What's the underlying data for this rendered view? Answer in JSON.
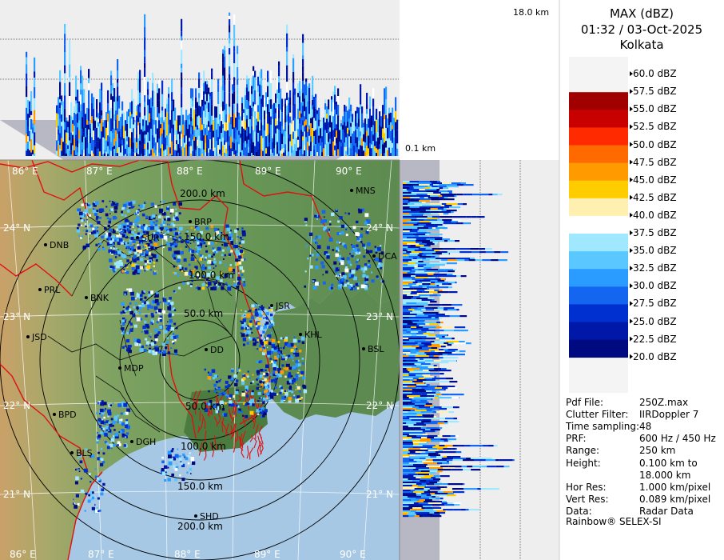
{
  "header": {
    "product": "MAX (dBZ)",
    "datetime": "01:32 / 03-Oct-2025",
    "station": "Kolkata"
  },
  "height_labels": {
    "top": "18.0 km",
    "bottom": "0.1 km"
  },
  "legend": [
    {
      "label": "60.0 dBZ",
      "color": "#ffffff"
    },
    {
      "label": "57.5 dBZ",
      "color": "#ffffff"
    },
    {
      "label": "55.0 dBZ",
      "color": "#a00000"
    },
    {
      "label": "52.5 dBZ",
      "color": "#c80000"
    },
    {
      "label": "50.0 dBZ",
      "color": "#ff2a00"
    },
    {
      "label": "47.5 dBZ",
      "color": "#ff6a00"
    },
    {
      "label": "45.0 dBZ",
      "color": "#ff9a00"
    },
    {
      "label": "42.5 dBZ",
      "color": "#ffcc00"
    },
    {
      "label": "40.0 dBZ",
      "color": "#fff0b0"
    },
    {
      "label": "37.5 dBZ",
      "color": "#ffffff"
    },
    {
      "label": "35.0 dBZ",
      "color": "#a0e8ff"
    },
    {
      "label": "32.5 dBZ",
      "color": "#5ac8ff"
    },
    {
      "label": "30.0 dBZ",
      "color": "#2a9cff"
    },
    {
      "label": "27.5 dBZ",
      "color": "#1466f0"
    },
    {
      "label": "25.0 dBZ",
      "color": "#0030d0"
    },
    {
      "label": "22.5 dBZ",
      "color": "#0018a8"
    },
    {
      "label": "20.0 dBZ",
      "color": "#000a80"
    }
  ],
  "info": [
    {
      "key": "Pdf File:",
      "value": "250Z.max"
    },
    {
      "key": "Clutter Filter:",
      "value": "IIRDoppler 7"
    },
    {
      "key": "Time sampling:",
      "value": "48"
    },
    {
      "key": "PRF:",
      "value": "600 Hz / 450 Hz"
    },
    {
      "key": "Range:",
      "value": "250 km"
    },
    {
      "key": "Height:",
      "value": "0.100 km to"
    },
    {
      "key": "",
      "value": "18.000 km"
    },
    {
      "key": "Hor Res:",
      "value": "1.000 km/pixel"
    },
    {
      "key": "Vert Res:",
      "value": "0.089 km/pixel"
    },
    {
      "key": "Data:",
      "value": "Radar Data"
    }
  ],
  "footer": "Rainbow® SELEX-SI",
  "map": {
    "lon_labels_top": [
      "86° E",
      "87° E",
      "88° E",
      "89° E",
      "90° E"
    ],
    "lon_labels_bottom": [
      "86° E",
      "87° E",
      "88° E",
      "89° E",
      "90° E"
    ],
    "lat_labels_left": [
      "24° N",
      "23° N",
      "22° N",
      "21° N"
    ],
    "lat_labels_right": [
      "24° N",
      "23° N",
      "22° N",
      "21° N"
    ],
    "range_labels": [
      "200.0 km",
      "150.0 km",
      "100.0 km",
      "50.0 km",
      "50.0 km",
      "100.0 km",
      "150.0 km",
      "200.0 km"
    ],
    "places": [
      "MNS",
      "BRP",
      "DNB",
      "SUR",
      "DCA",
      "PRL",
      "BNK",
      "JSR",
      "KHL",
      "JSD",
      "BSL",
      "MDP",
      "DD",
      "BPD",
      "DGH",
      "BLS",
      "SHD"
    ],
    "colors": {
      "land_green": "#5f8c54",
      "sea": "#a6c8e4",
      "border_red": "#e01010"
    }
  }
}
